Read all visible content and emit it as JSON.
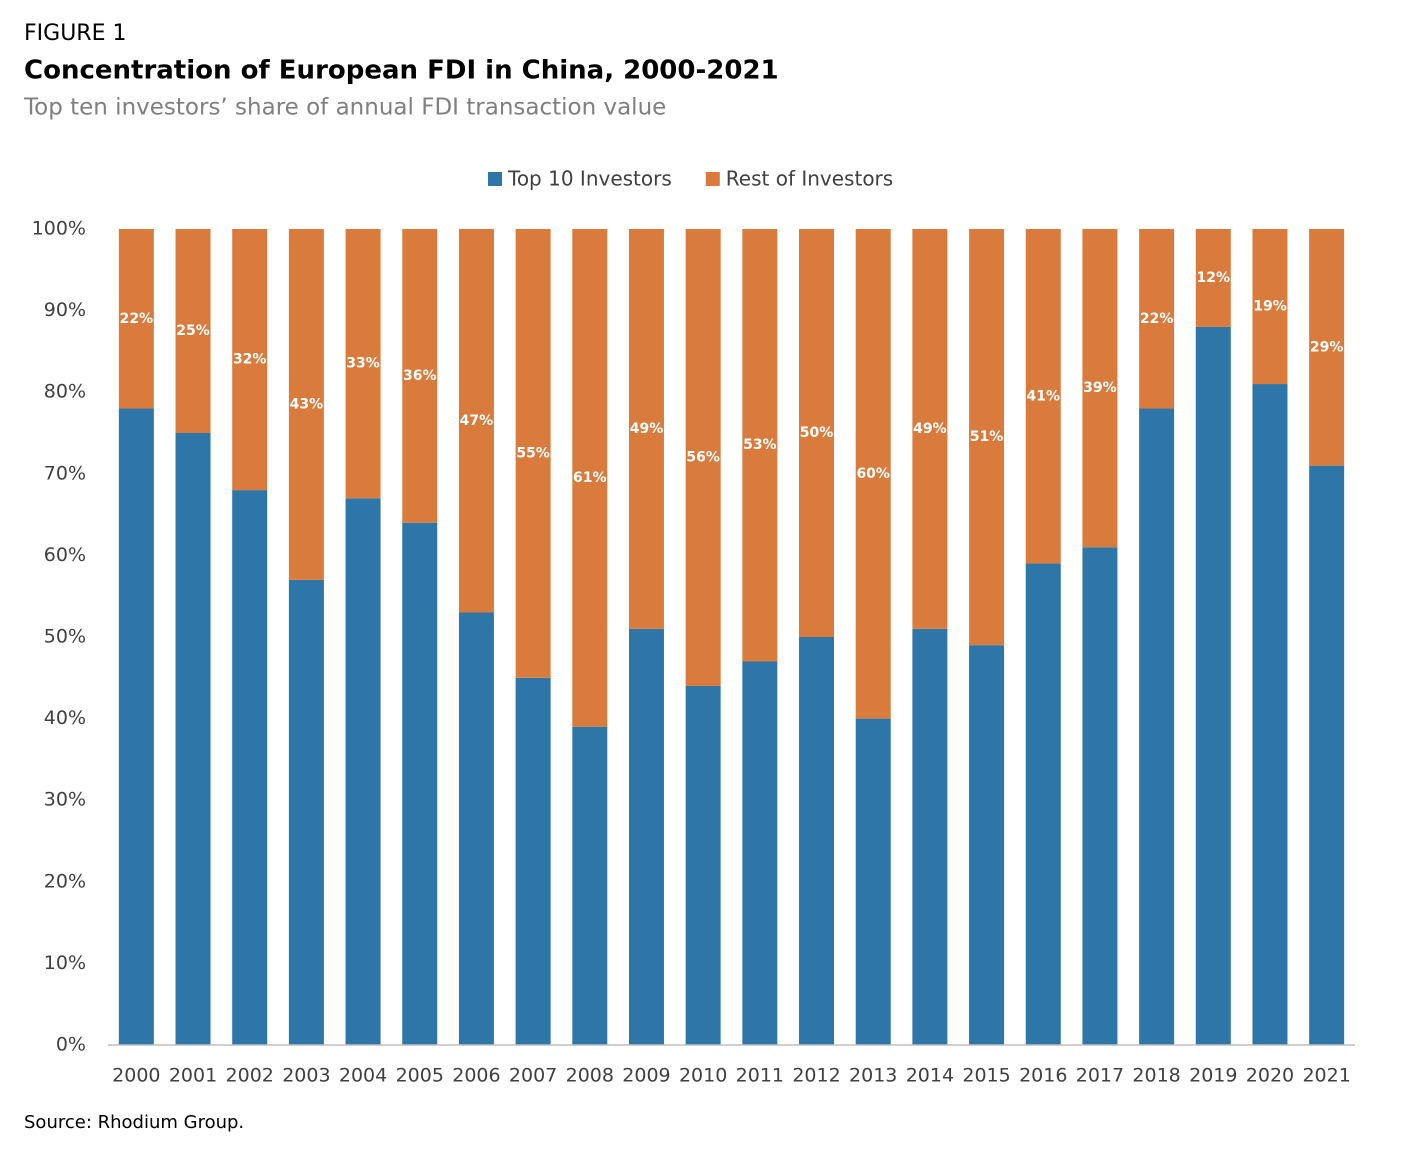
{
  "chart_data": {
    "type": "stacked_bar",
    "figure_label": "FIGURE 1",
    "title": "Concentration of European FDI in China, 2000-2021",
    "subtitle": "Top ten investors’ share of annual FDI transaction value",
    "source": "Source: Rhodium Group.",
    "categories": [
      "2000",
      "2001",
      "2002",
      "2003",
      "2004",
      "2005",
      "2006",
      "2007",
      "2008",
      "2009",
      "2010",
      "2011",
      "2012",
      "2013",
      "2014",
      "2015",
      "2016",
      "2017",
      "2018",
      "2019",
      "2020",
      "2021"
    ],
    "series": [
      {
        "name": "Top 10 Investors",
        "color": "#2e75a8",
        "values": [
          78,
          75,
          68,
          57,
          67,
          64,
          53,
          45,
          39,
          51,
          44,
          47,
          50,
          40,
          51,
          49,
          59,
          61,
          78,
          88,
          81,
          71
        ]
      },
      {
        "name": "Rest of Investors",
        "color": "#d97b3c",
        "values": [
          22,
          25,
          32,
          43,
          33,
          36,
          47,
          55,
          61,
          49,
          56,
          53,
          50,
          60,
          49,
          51,
          41,
          39,
          22,
          12,
          19,
          29
        ],
        "value_labels": [
          "22%",
          "25%",
          "32%",
          "43%",
          "33%",
          "36%",
          "47%",
          "55%",
          "61%",
          "49%",
          "56%",
          "53%",
          "50%",
          "60%",
          "49%",
          "51%",
          "41%",
          "39%",
          "22%",
          "12%",
          "19%",
          "29%"
        ]
      }
    ],
    "ylim": [
      0,
      100
    ],
    "yticks": [
      {
        "value": 0,
        "label": "0%"
      },
      {
        "value": 10,
        "label": "10%"
      },
      {
        "value": 20,
        "label": "20%"
      },
      {
        "value": 30,
        "label": "30%"
      },
      {
        "value": 40,
        "label": "40%"
      },
      {
        "value": 50,
        "label": "50%"
      },
      {
        "value": 60,
        "label": "60%"
      },
      {
        "value": 70,
        "label": "70%"
      },
      {
        "value": 80,
        "label": "80%"
      },
      {
        "value": 90,
        "label": "90%"
      },
      {
        "value": 100,
        "label": "100%"
      }
    ],
    "grid": false,
    "legend": "top"
  }
}
